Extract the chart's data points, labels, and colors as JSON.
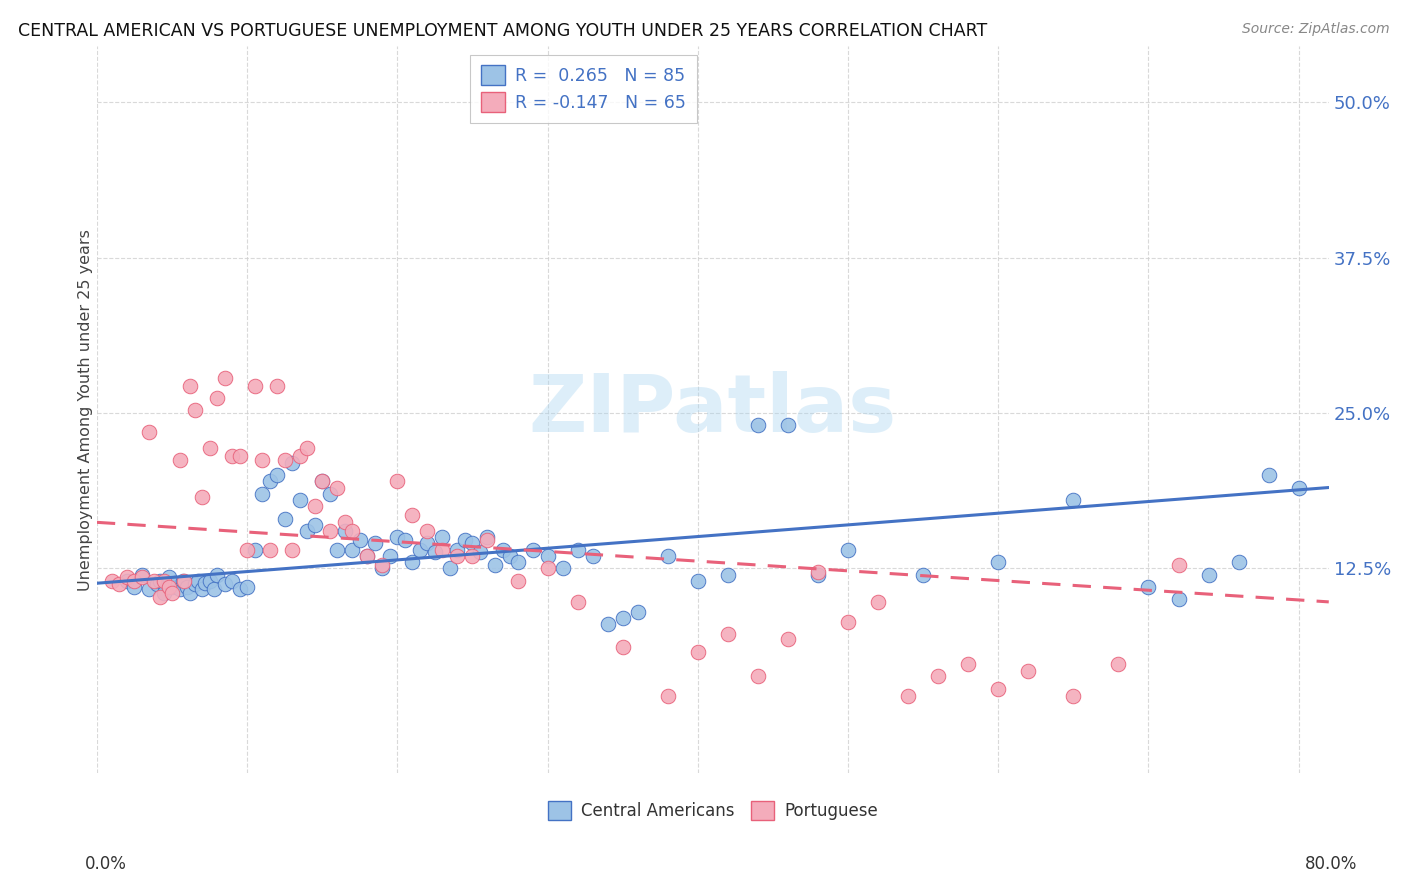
{
  "title": "CENTRAL AMERICAN VS PORTUGUESE UNEMPLOYMENT AMONG YOUTH UNDER 25 YEARS CORRELATION CHART",
  "source": "Source: ZipAtlas.com",
  "ylabel": "Unemployment Among Youth under 25 years",
  "ytick_values": [
    0.125,
    0.25,
    0.375,
    0.5
  ],
  "xtick_values": [
    0.0,
    0.1,
    0.2,
    0.3,
    0.4,
    0.5,
    0.6,
    0.7,
    0.8
  ],
  "xmin": 0.0,
  "xmax": 0.82,
  "ymin": -0.04,
  "ymax": 0.545,
  "blue_color": "#4472c4",
  "pink_color": "#e8617a",
  "blue_fill": "#9dc3e6",
  "pink_fill": "#f4acbb",
  "legend1_label_r": "R =  0.265",
  "legend1_label_n": "N = 85",
  "legend2_label_r": "R = -0.147",
  "legend2_label_n": "N = 65",
  "legend_r_color": "#4472c4",
  "legend_n_color": "#4472c4",
  "watermark": "ZIPatlas",
  "blue_scatter_x": [
    0.02,
    0.025,
    0.03,
    0.035,
    0.04,
    0.042,
    0.045,
    0.048,
    0.05,
    0.052,
    0.055,
    0.057,
    0.06,
    0.062,
    0.065,
    0.067,
    0.07,
    0.072,
    0.075,
    0.078,
    0.08,
    0.085,
    0.09,
    0.095,
    0.1,
    0.105,
    0.11,
    0.115,
    0.12,
    0.125,
    0.13,
    0.135,
    0.14,
    0.145,
    0.15,
    0.155,
    0.16,
    0.165,
    0.17,
    0.175,
    0.18,
    0.185,
    0.19,
    0.195,
    0.2,
    0.205,
    0.21,
    0.215,
    0.22,
    0.225,
    0.23,
    0.235,
    0.24,
    0.245,
    0.25,
    0.255,
    0.26,
    0.265,
    0.27,
    0.275,
    0.28,
    0.29,
    0.3,
    0.31,
    0.32,
    0.33,
    0.34,
    0.35,
    0.36,
    0.38,
    0.4,
    0.42,
    0.44,
    0.46,
    0.48,
    0.5,
    0.55,
    0.6,
    0.65,
    0.7,
    0.72,
    0.74,
    0.76,
    0.78,
    0.8
  ],
  "blue_scatter_y": [
    0.115,
    0.11,
    0.12,
    0.108,
    0.112,
    0.115,
    0.105,
    0.118,
    0.11,
    0.113,
    0.108,
    0.115,
    0.11,
    0.105,
    0.112,
    0.115,
    0.108,
    0.113,
    0.115,
    0.108,
    0.12,
    0.112,
    0.115,
    0.108,
    0.11,
    0.14,
    0.185,
    0.195,
    0.2,
    0.165,
    0.21,
    0.18,
    0.155,
    0.16,
    0.195,
    0.185,
    0.14,
    0.155,
    0.14,
    0.148,
    0.135,
    0.145,
    0.125,
    0.135,
    0.15,
    0.148,
    0.13,
    0.14,
    0.145,
    0.138,
    0.15,
    0.125,
    0.14,
    0.148,
    0.145,
    0.138,
    0.15,
    0.128,
    0.14,
    0.135,
    0.13,
    0.14,
    0.135,
    0.125,
    0.14,
    0.135,
    0.08,
    0.085,
    0.09,
    0.135,
    0.115,
    0.12,
    0.24,
    0.24,
    0.12,
    0.14,
    0.12,
    0.13,
    0.18,
    0.11,
    0.1,
    0.12,
    0.13,
    0.2,
    0.19
  ],
  "pink_scatter_x": [
    0.01,
    0.015,
    0.02,
    0.025,
    0.03,
    0.035,
    0.038,
    0.042,
    0.045,
    0.048,
    0.05,
    0.055,
    0.058,
    0.062,
    0.065,
    0.07,
    0.075,
    0.08,
    0.085,
    0.09,
    0.095,
    0.1,
    0.105,
    0.11,
    0.115,
    0.12,
    0.125,
    0.13,
    0.135,
    0.14,
    0.145,
    0.15,
    0.155,
    0.16,
    0.165,
    0.17,
    0.18,
    0.19,
    0.2,
    0.21,
    0.22,
    0.23,
    0.24,
    0.25,
    0.26,
    0.28,
    0.3,
    0.32,
    0.35,
    0.38,
    0.4,
    0.42,
    0.44,
    0.46,
    0.48,
    0.5,
    0.52,
    0.54,
    0.56,
    0.58,
    0.6,
    0.62,
    0.65,
    0.68,
    0.72
  ],
  "pink_scatter_y": [
    0.115,
    0.112,
    0.118,
    0.115,
    0.118,
    0.235,
    0.115,
    0.102,
    0.115,
    0.11,
    0.105,
    0.212,
    0.115,
    0.272,
    0.252,
    0.182,
    0.222,
    0.262,
    0.278,
    0.215,
    0.215,
    0.14,
    0.272,
    0.212,
    0.14,
    0.272,
    0.212,
    0.14,
    0.215,
    0.222,
    0.175,
    0.195,
    0.155,
    0.19,
    0.162,
    0.155,
    0.135,
    0.128,
    0.195,
    0.168,
    0.155,
    0.14,
    0.135,
    0.135,
    0.148,
    0.115,
    0.125,
    0.098,
    0.062,
    0.022,
    0.058,
    0.072,
    0.038,
    0.068,
    0.122,
    0.082,
    0.098,
    0.022,
    0.038,
    0.048,
    0.028,
    0.042,
    0.022,
    0.048,
    0.128
  ],
  "blue_trend_x": [
    0.0,
    0.82
  ],
  "blue_trend_y": [
    0.113,
    0.19
  ],
  "pink_trend_x": [
    0.0,
    0.82
  ],
  "pink_trend_y": [
    0.162,
    0.098
  ]
}
